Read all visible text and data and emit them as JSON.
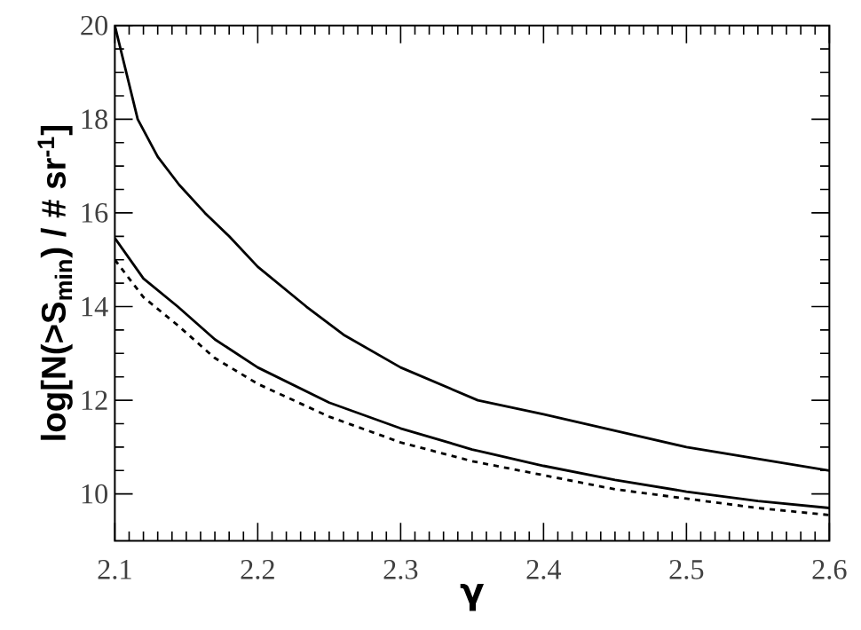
{
  "chart_data": {
    "type": "line",
    "xlabel": "γ",
    "ylabel": "log[N(>S$_{min}$) / # sr$^{-1}$]",
    "xlim": [
      2.1,
      2.6
    ],
    "ylim": [
      9,
      20
    ],
    "xticks": [
      2.1,
      2.2,
      2.3,
      2.4,
      2.5,
      2.6
    ],
    "yticks": [
      10,
      12,
      14,
      16,
      18,
      20
    ],
    "grid": false,
    "marker": "none",
    "series": [
      {
        "color": "#000000",
        "line_style": "solid",
        "x": [
          2.1,
          2.116,
          2.13,
          2.145,
          2.163,
          2.18,
          2.2,
          2.234,
          2.26,
          2.3,
          2.354,
          2.4,
          2.45,
          2.5,
          2.55,
          2.6
        ],
        "values": [
          20.0,
          18.0,
          17.2,
          16.6,
          16.0,
          15.5,
          14.85,
          14.0,
          13.4,
          12.7,
          12.0,
          11.7,
          11.35,
          11.0,
          10.75,
          10.5
        ]
      },
      {
        "color": "#000000",
        "line_style": "solid",
        "x": [
          2.1,
          2.12,
          2.144,
          2.17,
          2.2,
          2.25,
          2.3,
          2.35,
          2.4,
          2.45,
          2.5,
          2.55,
          2.6
        ],
        "values": [
          15.46,
          14.6,
          14.0,
          13.3,
          12.7,
          11.95,
          11.4,
          10.95,
          10.6,
          10.3,
          10.05,
          9.85,
          9.7
        ]
      },
      {
        "color": "#000000",
        "line_style": "dashed",
        "x": [
          2.1,
          2.12,
          2.144,
          2.17,
          2.2,
          2.25,
          2.3,
          2.35,
          2.4,
          2.45,
          2.5,
          2.55,
          2.6
        ],
        "values": [
          15.0,
          14.2,
          13.6,
          12.9,
          12.35,
          11.65,
          11.1,
          10.7,
          10.4,
          10.1,
          9.9,
          9.7,
          9.55
        ]
      }
    ]
  }
}
